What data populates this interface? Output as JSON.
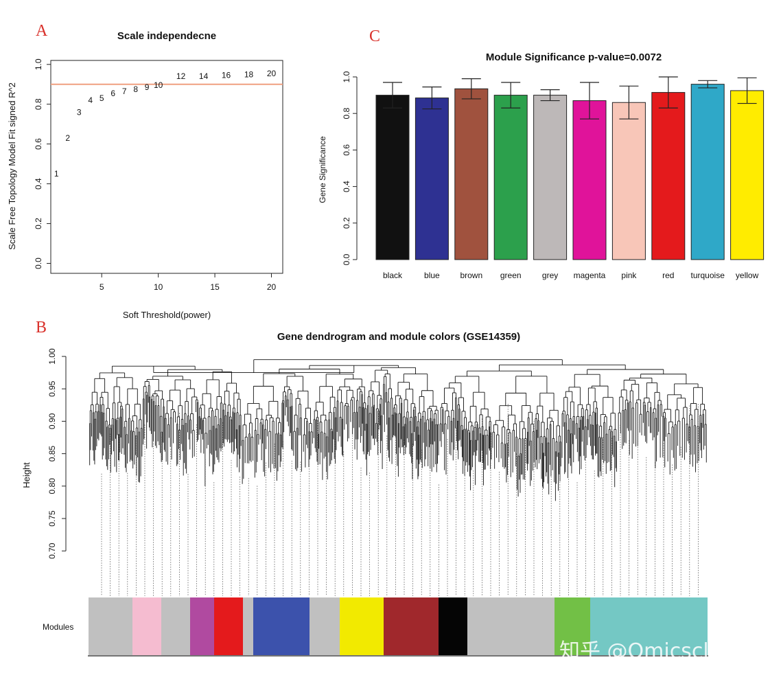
{
  "watermark": "知乎 @Omicsclass",
  "chart_data": [
    {
      "id": "A",
      "type": "scatter",
      "panel_label": "A",
      "title": "Scale independecne",
      "xlabel": "Soft Threshold(power)",
      "ylabel": "Scale Free Topology Model Fit signed R^2",
      "xlim": [
        0.5,
        21
      ],
      "ylim": [
        -0.05,
        1.02
      ],
      "xticks": [
        5,
        10,
        15,
        20
      ],
      "yticks": [
        0.0,
        0.2,
        0.4,
        0.6,
        0.8,
        1.0
      ],
      "threshold_line": 0.9,
      "threshold_color": "#f0a080",
      "points": [
        {
          "x": 1,
          "y": 0.45,
          "label": "1"
        },
        {
          "x": 2,
          "y": 0.63,
          "label": "2"
        },
        {
          "x": 3,
          "y": 0.76,
          "label": "3"
        },
        {
          "x": 4,
          "y": 0.82,
          "label": "4"
        },
        {
          "x": 5,
          "y": 0.83,
          "label": "5"
        },
        {
          "x": 6,
          "y": 0.855,
          "label": "6"
        },
        {
          "x": 7,
          "y": 0.865,
          "label": "7"
        },
        {
          "x": 8,
          "y": 0.875,
          "label": "8"
        },
        {
          "x": 9,
          "y": 0.885,
          "label": "9"
        },
        {
          "x": 10,
          "y": 0.895,
          "label": "10"
        },
        {
          "x": 12,
          "y": 0.94,
          "label": "12"
        },
        {
          "x": 14,
          "y": 0.94,
          "label": "14"
        },
        {
          "x": 16,
          "y": 0.945,
          "label": "16"
        },
        {
          "x": 18,
          "y": 0.95,
          "label": "18"
        },
        {
          "x": 20,
          "y": 0.955,
          "label": "20"
        }
      ]
    },
    {
      "id": "C",
      "type": "bar",
      "panel_label": "C",
      "title": "Module Significance p-value=0.0072",
      "xlabel": "",
      "ylabel": "Gene Significance",
      "ylim": [
        0,
        1.0
      ],
      "yticks": [
        0.0,
        0.2,
        0.4,
        0.6,
        0.8,
        1.0
      ],
      "categories": [
        "black",
        "blue",
        "brown",
        "green",
        "grey",
        "magenta",
        "pink",
        "red",
        "turquoise",
        "yellow"
      ],
      "values": [
        0.9,
        0.885,
        0.935,
        0.9,
        0.9,
        0.87,
        0.86,
        0.915,
        0.96,
        0.925
      ],
      "errors": [
        0.07,
        0.06,
        0.055,
        0.07,
        0.03,
        0.1,
        0.09,
        0.085,
        0.02,
        0.07
      ],
      "colors": [
        "#111111",
        "#2e3192",
        "#a0523e",
        "#2ca04c",
        "#bdb8b8",
        "#e0139a",
        "#f8c6b8",
        "#e41a1c",
        "#2fa8c8",
        "#ffec00"
      ]
    },
    {
      "id": "B",
      "type": "dendrogram",
      "panel_label": "B",
      "title": "Gene dendrogram and module colors (GSE14359)",
      "ylabel": "Height",
      "ylim": [
        0.66,
        1.0
      ],
      "yticks": [
        0.7,
        0.75,
        0.8,
        0.85,
        0.9,
        0.95,
        1.0
      ],
      "top_merge_height": 0.995,
      "module_track_label": "Modules",
      "modules": [
        {
          "color": "#c0c0c0",
          "width": 64
        },
        {
          "color": "#f5bcd0",
          "width": 42
        },
        {
          "color": "#c0c0c0",
          "width": 42
        },
        {
          "color": "#b04aa0",
          "width": 35
        },
        {
          "color": "#e41a1c",
          "width": 42
        },
        {
          "color": "#c0c0c0",
          "width": 15
        },
        {
          "color": "#3c52ac",
          "width": 82
        },
        {
          "color": "#c0c0c0",
          "width": 44
        },
        {
          "color": "#f2ea00",
          "width": 64
        },
        {
          "color": "#a0282c",
          "width": 80
        },
        {
          "color": "#050505",
          "width": 42
        },
        {
          "color": "#c0c0c0",
          "width": 127
        },
        {
          "color": "#72c046",
          "width": 52
        },
        {
          "color": "#74c8c4",
          "width": 171
        }
      ]
    }
  ]
}
